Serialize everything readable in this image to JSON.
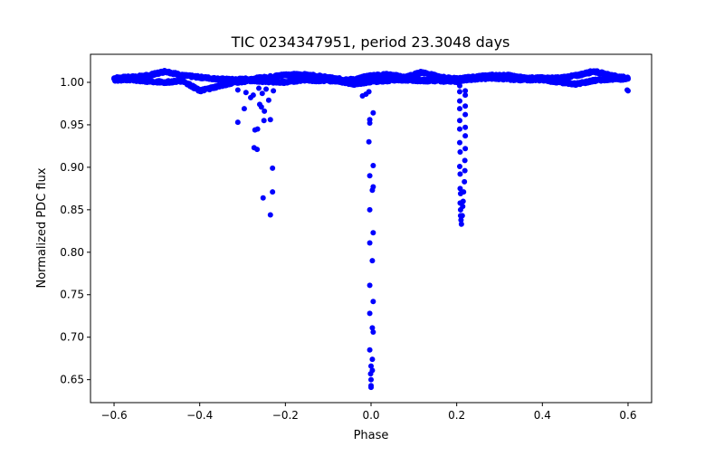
{
  "chart_data": {
    "type": "scatter",
    "title": "TIC 0234347951, period 23.3048 days",
    "xlabel": "Phase",
    "ylabel": "Normalized PDC flux",
    "xlim": [
      -0.655,
      0.655
    ],
    "ylim": [
      0.623,
      1.033
    ],
    "xticks": [
      -0.6,
      -0.4,
      -0.2,
      0.0,
      0.2,
      0.4,
      0.6
    ],
    "xtick_labels": [
      "−0.6",
      "−0.4",
      "−0.2",
      "0.0",
      "0.2",
      "0.4",
      "0.6"
    ],
    "yticks": [
      0.65,
      0.7,
      0.75,
      0.8,
      0.85,
      0.9,
      0.95,
      1.0
    ],
    "ytick_labels": [
      "0.65",
      "0.70",
      "0.75",
      "0.80",
      "0.85",
      "0.90",
      "0.95",
      "1.00"
    ],
    "grid": false,
    "marker_color": "#0000ff",
    "baseline": {
      "x": [
        -0.6,
        -0.56,
        -0.52,
        -0.48,
        -0.44,
        -0.4,
        -0.36,
        -0.32,
        -0.28,
        -0.24,
        -0.2,
        -0.16,
        -0.12,
        -0.08,
        -0.04,
        0,
        0.04,
        0.08,
        0.12,
        0.16,
        0.2,
        0.24,
        0.28,
        0.32,
        0.36,
        0.4,
        0.44,
        0.48,
        0.52,
        0.56,
        0.6
      ],
      "upper": [
        1.005,
        1.006,
        1.008,
        1.013,
        1.008,
        1.006,
        1.004,
        1.003,
        1.004,
        1.006,
        1.009,
        1.009,
        1.007,
        1.004,
        1.003,
        1.008,
        1.009,
        1.006,
        1.012,
        1.006,
        1.004,
        1.006,
        1.008,
        1.008,
        1.005,
        1.005,
        1.005,
        1.008,
        1.013,
        1.008,
        1.005
      ],
      "lower": [
        1.003,
        1.003,
        1.001,
        1.0,
        1.002,
        0.99,
        0.995,
        1.0,
        1.002,
        1.001,
        1.0,
        1.003,
        1.002,
        1.002,
        0.998,
        1.001,
        1.002,
        1.003,
        1.002,
        1.002,
        1.001,
        1.004,
        1.005,
        1.004,
        1.003,
        1.003,
        1.0,
        0.998,
        1.002,
        1.004,
        1.004
      ]
    },
    "points": [
      [
        -0.311,
        0.953
      ],
      [
        -0.296,
        0.969
      ],
      [
        -0.271,
        0.944
      ],
      [
        -0.265,
        0.945
      ],
      [
        -0.273,
        0.923
      ],
      [
        -0.266,
        0.921
      ],
      [
        -0.23,
        0.899
      ],
      [
        -0.23,
        0.871
      ],
      [
        -0.252,
        0.864
      ],
      [
        -0.235,
        0.844
      ],
      [
        -0.25,
        0.955
      ],
      [
        -0.235,
        0.956
      ],
      [
        -0.249,
        0.966
      ],
      [
        -0.256,
        0.971
      ],
      [
        -0.26,
        0.974
      ],
      [
        -0.239,
        0.979
      ],
      [
        -0.281,
        0.982
      ],
      [
        -0.311,
        0.991
      ],
      [
        -0.292,
        0.988
      ],
      [
        -0.228,
        0.99
      ],
      [
        -0.254,
        0.987
      ],
      [
        -0.275,
        0.985
      ],
      [
        -0.262,
        0.993
      ],
      [
        -0.245,
        0.992
      ],
      [
        -0.395,
        0.99
      ],
      [
        -0.385,
        0.992
      ],
      [
        -0.02,
        0.984
      ],
      [
        -0.012,
        0.986
      ],
      [
        -0.005,
        0.989
      ],
      [
        0.005,
        0.964
      ],
      [
        -0.003,
        0.956
      ],
      [
        -0.003,
        0.952
      ],
      [
        -0.005,
        0.93
      ],
      [
        0.005,
        0.902
      ],
      [
        -0.003,
        0.89
      ],
      [
        0.005,
        0.877
      ],
      [
        0.003,
        0.873
      ],
      [
        -0.003,
        0.85
      ],
      [
        0.005,
        0.823
      ],
      [
        -0.003,
        0.811
      ],
      [
        0.003,
        0.79
      ],
      [
        -0.003,
        0.761
      ],
      [
        0.005,
        0.742
      ],
      [
        -0.003,
        0.728
      ],
      [
        0.003,
        0.711
      ],
      [
        0.005,
        0.706
      ],
      [
        -0.003,
        0.685
      ],
      [
        0.003,
        0.674
      ],
      [
        0.0,
        0.666
      ],
      [
        0.003,
        0.661
      ],
      [
        -0.001,
        0.657
      ],
      [
        0.0,
        0.65
      ],
      [
        0.0,
        0.643
      ],
      [
        0.0,
        0.641
      ],
      [
        0.207,
        0.996
      ],
      [
        0.207,
        0.989
      ],
      [
        0.207,
        0.978
      ],
      [
        0.207,
        0.969
      ],
      [
        0.207,
        0.955
      ],
      [
        0.207,
        0.945
      ],
      [
        0.207,
        0.929
      ],
      [
        0.208,
        0.918
      ],
      [
        0.207,
        0.901
      ],
      [
        0.208,
        0.892
      ],
      [
        0.208,
        0.875
      ],
      [
        0.209,
        0.869
      ],
      [
        0.208,
        0.858
      ],
      [
        0.209,
        0.85
      ],
      [
        0.209,
        0.843
      ],
      [
        0.21,
        0.838
      ],
      [
        0.211,
        0.833
      ],
      [
        0.22,
        0.99
      ],
      [
        0.22,
        0.985
      ],
      [
        0.22,
        0.972
      ],
      [
        0.22,
        0.962
      ],
      [
        0.22,
        0.947
      ],
      [
        0.22,
        0.937
      ],
      [
        0.22,
        0.922
      ],
      [
        0.219,
        0.908
      ],
      [
        0.219,
        0.896
      ],
      [
        0.218,
        0.883
      ],
      [
        0.216,
        0.871
      ],
      [
        0.215,
        0.86
      ],
      [
        0.214,
        0.854
      ],
      [
        0.213,
        0.843
      ],
      [
        0.6,
        0.99
      ],
      [
        0.598,
        0.991
      ]
    ]
  }
}
